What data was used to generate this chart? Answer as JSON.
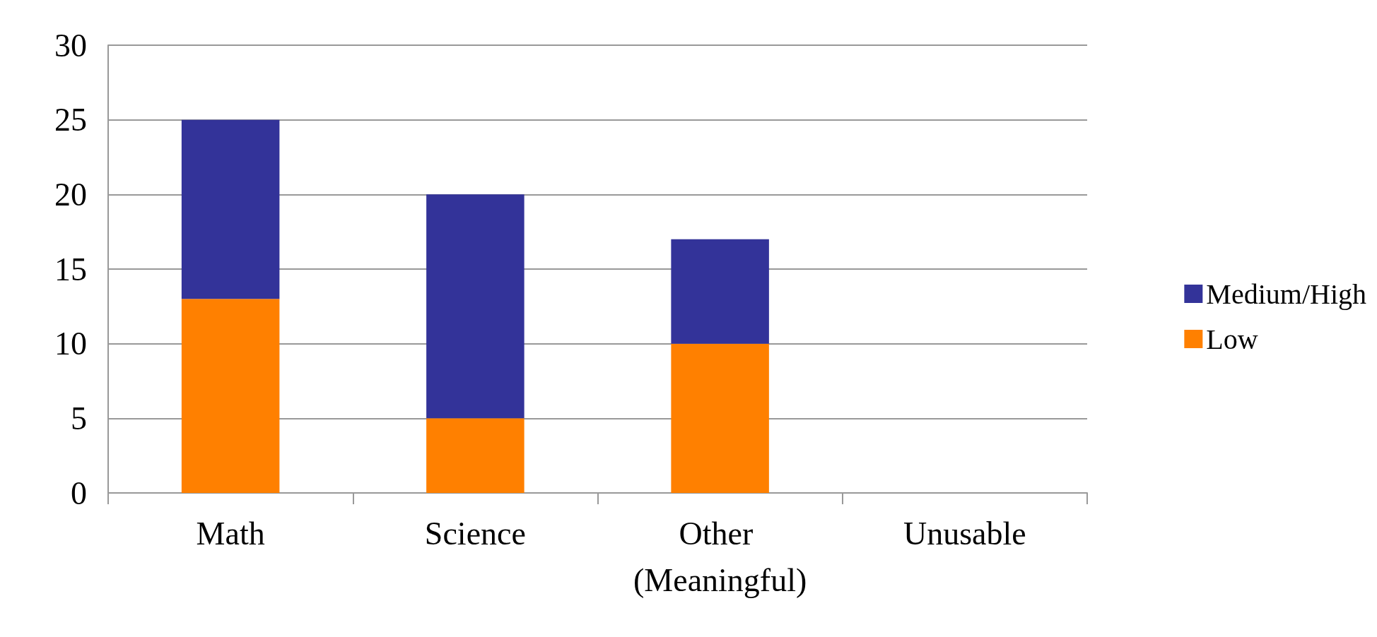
{
  "chart_data": {
    "type": "bar",
    "stacked": true,
    "categories": [
      "Math",
      "Science",
      "Other (Meaningful)",
      "Unusable"
    ],
    "series": [
      {
        "name": "Low",
        "color": "#ff8000",
        "values": [
          13,
          5,
          10,
          0
        ]
      },
      {
        "name": "Medium/High",
        "color": "#333399",
        "values": [
          12,
          15,
          7,
          0
        ]
      }
    ],
    "ylim": [
      0,
      30
    ],
    "yticks": [
      0,
      5,
      10,
      15,
      20,
      25,
      30
    ],
    "grid": "y",
    "legend": "right"
  }
}
